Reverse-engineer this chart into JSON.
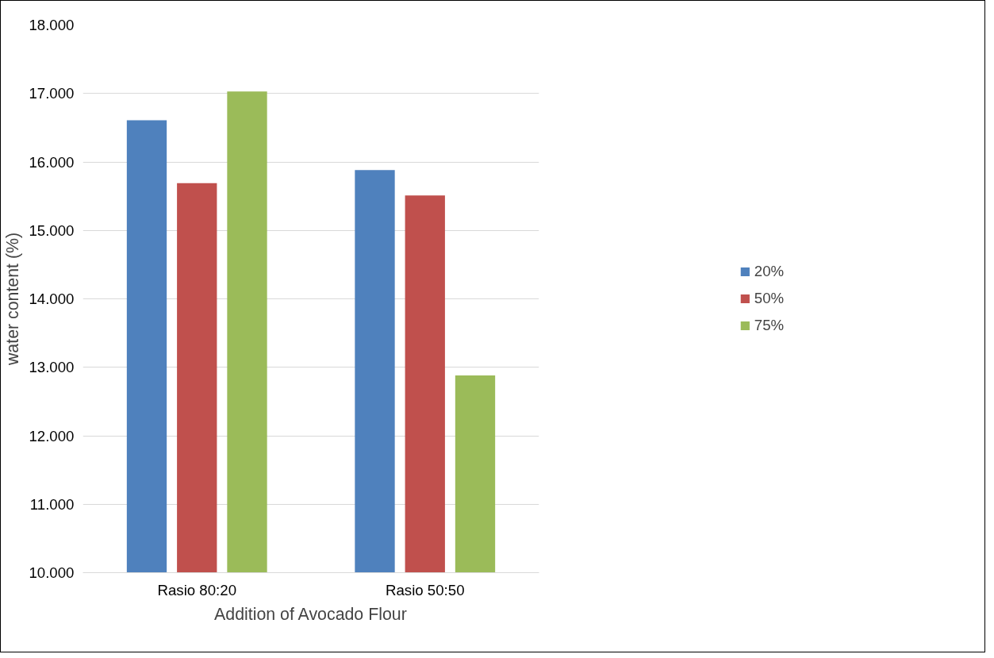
{
  "chart_data": {
    "type": "bar",
    "xlabel": "Addition of Avocado Flour",
    "ylabel": "water content (%)",
    "categories": [
      "Rasio 80:20",
      "Rasio 50:50"
    ],
    "series": [
      {
        "name": "20%",
        "color": "#4f81bd",
        "values": [
          16.61,
          15.88
        ]
      },
      {
        "name": "50%",
        "color": "#c0504d",
        "values": [
          15.69,
          15.51
        ]
      },
      {
        "name": "75%",
        "color": "#9bbb59",
        "values": [
          17.03,
          12.88
        ]
      }
    ],
    "ylim": [
      10,
      18
    ],
    "yticks": [
      {
        "value": 10,
        "label": "10.000"
      },
      {
        "value": 11,
        "label": "11.000"
      },
      {
        "value": 12,
        "label": "12.000"
      },
      {
        "value": 13,
        "label": "13.000"
      },
      {
        "value": 14,
        "label": "14.000"
      },
      {
        "value": 15,
        "label": "15.000"
      },
      {
        "value": 16,
        "label": "16.000"
      },
      {
        "value": 17,
        "label": "17.000"
      },
      {
        "value": 18,
        "label": "18.000"
      }
    ],
    "grid": "y",
    "legend": "right"
  }
}
